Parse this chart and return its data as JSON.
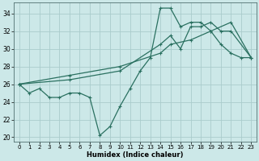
{
  "xlabel": "Humidex (Indice chaleur)",
  "bg_color": "#cce8e8",
  "grid_color": "#aacccc",
  "line_color": "#2a7060",
  "xlim": [
    -0.5,
    23.5
  ],
  "ylim": [
    19.5,
    35.2
  ],
  "yticks": [
    20,
    22,
    24,
    26,
    28,
    30,
    32,
    34
  ],
  "xticks": [
    0,
    1,
    2,
    3,
    4,
    5,
    6,
    7,
    8,
    9,
    10,
    11,
    12,
    13,
    14,
    15,
    16,
    17,
    18,
    19,
    20,
    21,
    22,
    23
  ],
  "curve1_x": [
    0,
    1,
    2,
    3,
    4,
    5,
    6,
    7,
    8,
    9,
    10,
    11,
    12,
    13,
    14,
    15,
    16,
    17,
    18,
    19,
    20,
    21,
    22,
    23
  ],
  "curve1_y": [
    26.0,
    25.0,
    25.5,
    24.5,
    24.5,
    25.0,
    25.0,
    24.5,
    20.2,
    21.2,
    23.5,
    25.5,
    27.5,
    29.0,
    34.6,
    34.6,
    32.5,
    33.0,
    33.0,
    32.0,
    30.5,
    29.5,
    29.0,
    29.0
  ],
  "curve1_markers": [
    0,
    1,
    2,
    3,
    4,
    5,
    6,
    7,
    8,
    9,
    10,
    11,
    12,
    13,
    14,
    15,
    16,
    17,
    18,
    19,
    20,
    21,
    22,
    23
  ],
  "curve2_x": [
    0,
    5,
    10,
    14,
    15,
    16,
    17,
    18,
    19,
    20,
    21,
    23
  ],
  "curve2_y": [
    26.0,
    26.5,
    27.5,
    30.5,
    31.5,
    30.0,
    32.5,
    32.5,
    33.0,
    32.0,
    32.0,
    29.0
  ],
  "curve3_x": [
    0,
    5,
    10,
    14,
    15,
    17,
    19,
    21,
    23
  ],
  "curve3_y": [
    26.0,
    27.0,
    28.0,
    29.5,
    30.5,
    31.0,
    32.0,
    33.0,
    29.0
  ]
}
